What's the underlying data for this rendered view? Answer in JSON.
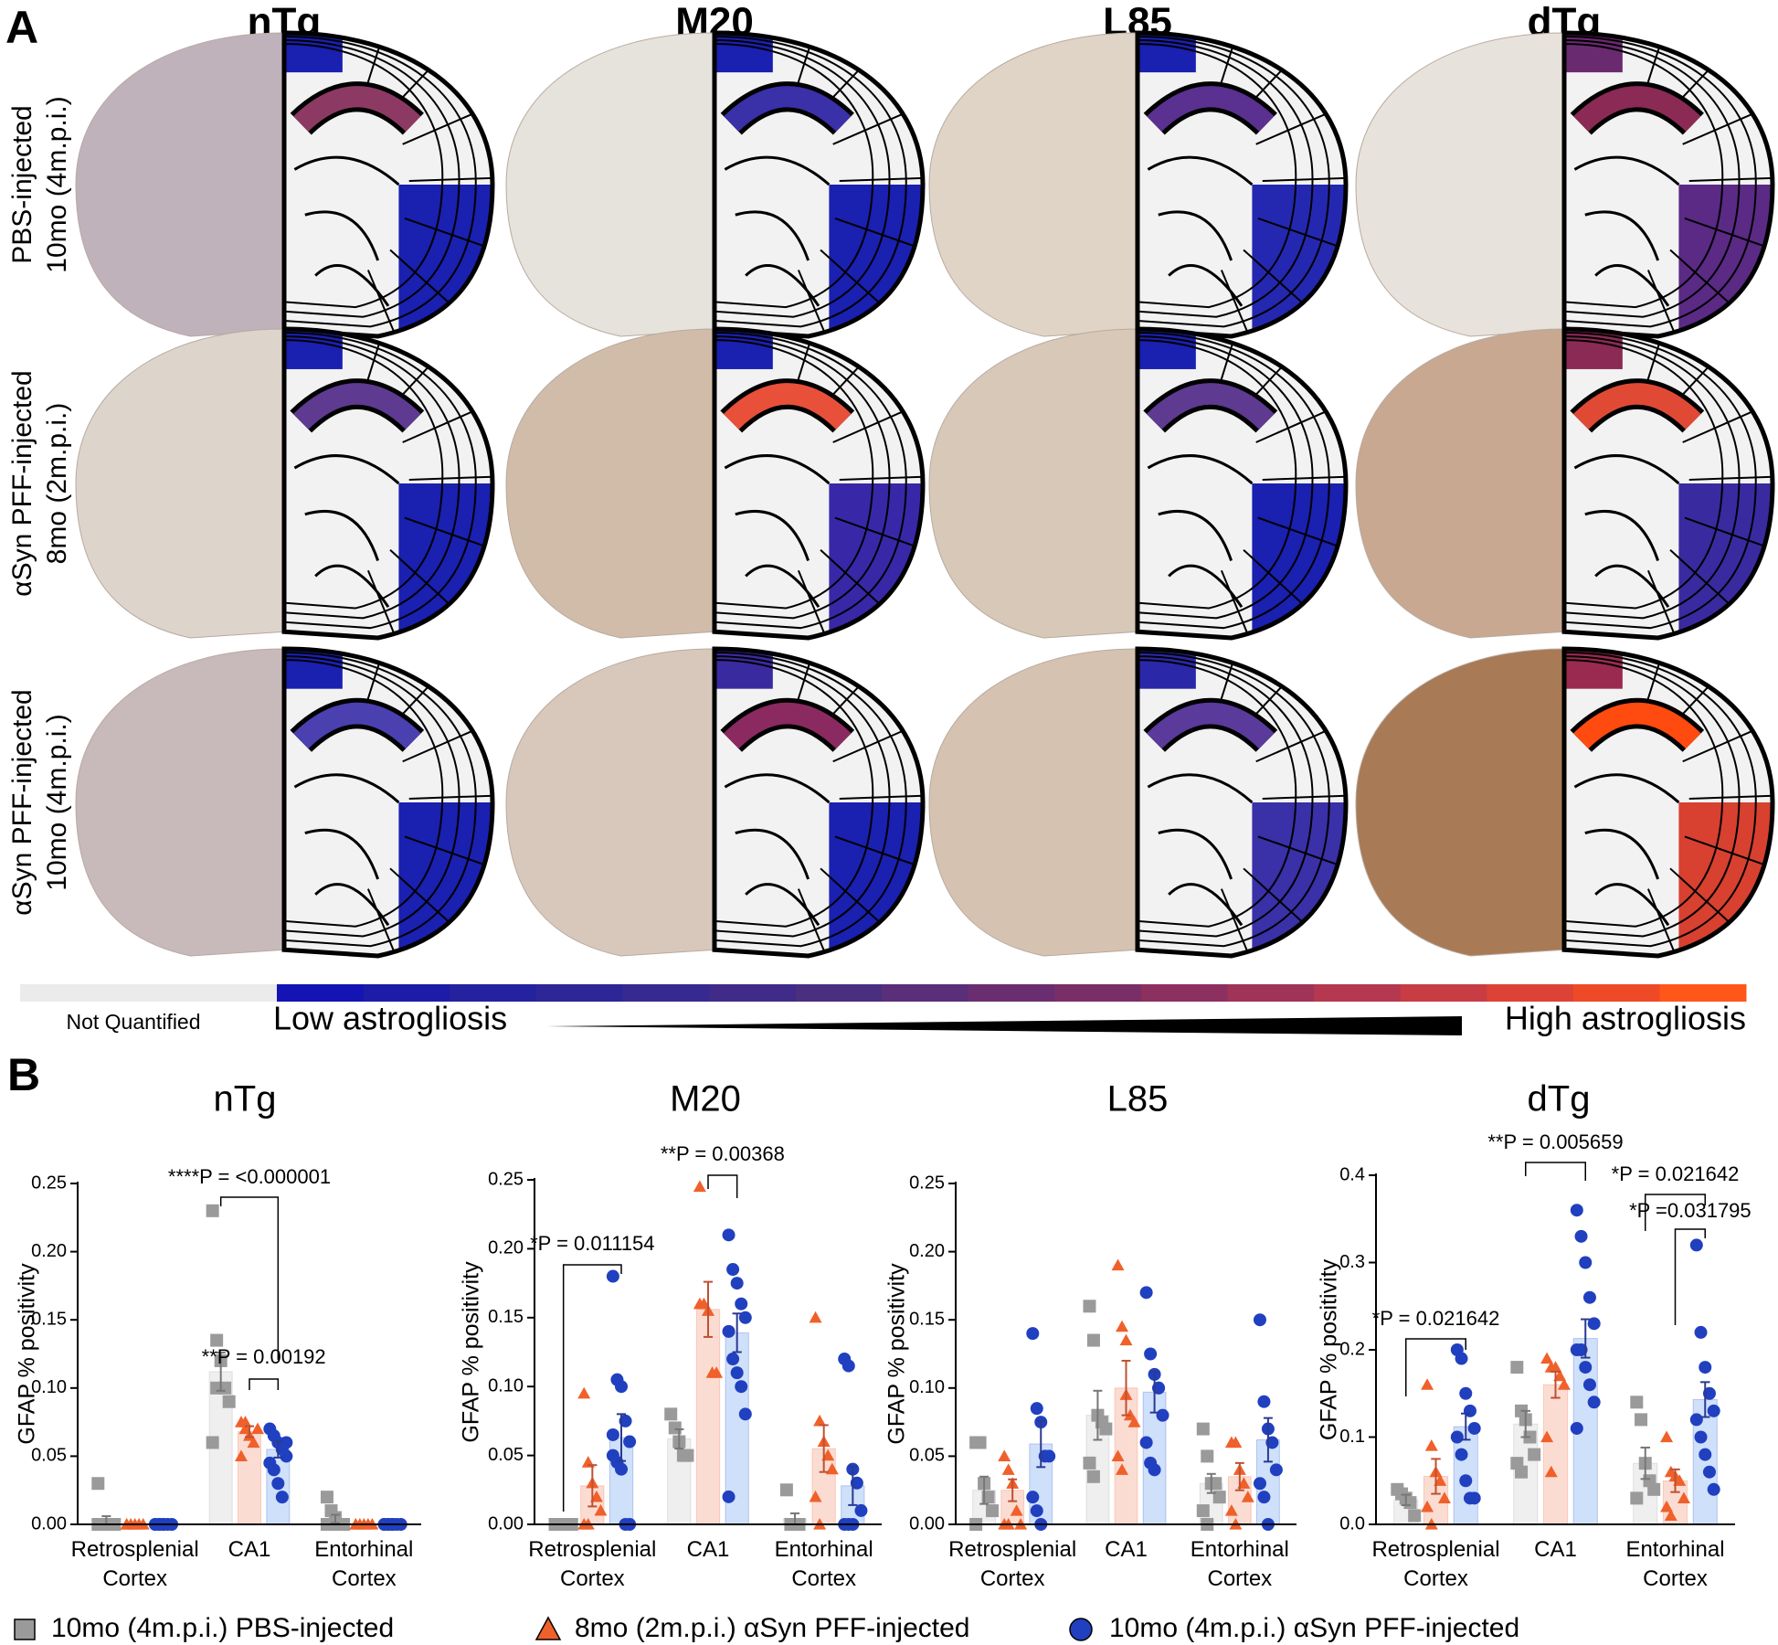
{
  "panel_a": {
    "label": "A",
    "columns": [
      "nTg",
      "M20",
      "L85",
      "dTg"
    ],
    "rows": [
      [
        "PBS-injected",
        "10mo (4m.p.i.)"
      ],
      [
        "αSyn PFF-injected",
        "8mo (2m.p.i.)"
      ],
      [
        "αSyn PFF-injected",
        "10mo (4m.p.i.)"
      ]
    ],
    "cells": [
      [
        {
          "tissue": "#bfb2bb",
          "hc": "#8c3a64",
          "rsc": "#1a20b0",
          "ec": "#1a20b0"
        },
        {
          "tissue": "#e6e2dc",
          "hc": "#3a30a8",
          "rsc": "#1a20b0",
          "ec": "#1a20b0"
        },
        {
          "tissue": "#e0d4c6",
          "hc": "#5a3090",
          "rsc": "#1a20b0",
          "ec": "#2428b0"
        },
        {
          "tissue": "#e8e2dc",
          "hc": "#8a2a55",
          "rsc": "#6a2a70",
          "ec": "#5a2a85"
        }
      ],
      [
        {
          "tissue": "#ddd4cc",
          "hc": "#5e3a90",
          "rsc": "#1a20b0",
          "ec": "#1a20b0"
        },
        {
          "tissue": "#d0bca8",
          "hc": "#e8503a",
          "rsc": "#1a20b0",
          "ec": "#3828a8"
        },
        {
          "tissue": "#d8c8b8",
          "hc": "#5e3a90",
          "rsc": "#1a20b0",
          "ec": "#1a20b0"
        },
        {
          "tissue": "#c8a890",
          "hc": "#e04a35",
          "rsc": "#8a2a55",
          "ec": "#3a2aa0"
        }
      ],
      [
        {
          "tissue": "#c8b9bb",
          "hc": "#4a40b0",
          "rsc": "#1a20b0",
          "ec": "#1a20b0"
        },
        {
          "tissue": "#d8c8bb",
          "hc": "#8a2a60",
          "rsc": "#3a2aa0",
          "ec": "#1a20b0"
        },
        {
          "tissue": "#d5c2b0",
          "hc": "#5a3a9a",
          "rsc": "#2a28a8",
          "ec": "#3a30a8"
        },
        {
          "tissue": "#a87a55",
          "hc": "#ff4a10",
          "rsc": "#9a2a50",
          "ec": "#d84030"
        }
      ]
    ]
  },
  "colorbar": {
    "not_quantified": "Not Quantified",
    "low": "Low astrogliosis",
    "high": "High astrogliosis",
    "gray": "#ebebeb",
    "colors": [
      "#1414b4",
      "#1c1ca8",
      "#24229e",
      "#2c2696",
      "#362a90",
      "#402c88",
      "#4a2e80",
      "#5a2e78",
      "#6a2e70",
      "#7a2e68",
      "#8c3060",
      "#a03458",
      "#b43850",
      "#c83c44",
      "#dc4236",
      "#ee4a28",
      "#ff561a"
    ]
  },
  "panel_b_label": "B",
  "groups": [
    {
      "name": "10mo (4m.p.i.) PBS-injected",
      "marker": "square",
      "bar_color": "#efefef",
      "point_color": "#9a9a9a",
      "error_color": "#777777"
    },
    {
      "name": "8mo (2m.p.i.) αSyn PFF-injected",
      "marker": "triangle",
      "bar_color": "#fbdcd2",
      "point_color": "#f0602a",
      "error_color": "#c05030"
    },
    {
      "name": "10mo (4m.p.i.) αSyn PFF-injected",
      "marker": "circle",
      "bar_color": "#cfe0fb",
      "point_color": "#2040c0",
      "error_color": "#2a3a90"
    }
  ],
  "chart_data": [
    {
      "type": "bar",
      "title": "nTg",
      "y_label": "GFAP % positivity",
      "categories": [
        "Retrosplenial Cortex",
        "CA1",
        "Entorhinal Cortex"
      ],
      "ylim": [
        0,
        0.25
      ],
      "yticks": [
        {
          "value": 0,
          "label": "0.00"
        },
        0.05,
        {
          "value": 0.1,
          "label": "0.10"
        },
        0.15,
        {
          "value": 0.2,
          "label": "0.20"
        },
        0.25
      ],
      "series": [
        {
          "values": [
            0.003,
            0.112,
            0.004
          ],
          "errors": [
            0.003,
            0.014,
            0.003
          ],
          "points": [
            [
              0.03,
              0,
              0,
              0,
              0,
              0
            ],
            [
              0.23,
              0.135,
              0.12,
              0.1,
              0.09,
              0.06,
              0.1
            ],
            [
              0.02,
              0.01,
              0.005,
              0,
              0,
              0
            ]
          ]
        },
        {
          "values": [
            0,
            0.068,
            0
          ],
          "errors": [
            0,
            0.004,
            0
          ],
          "points": [
            [
              0,
              0,
              0,
              0,
              0,
              0
            ],
            [
              0.075,
              0.07,
              0.065,
              0.06,
              0.07,
              0.05,
              0.075
            ],
            [
              0,
              0,
              0,
              0,
              0,
              0
            ]
          ]
        },
        {
          "values": [
            0,
            0.055,
            0
          ],
          "errors": [
            0,
            0.006,
            0
          ],
          "points": [
            [
              0,
              0,
              0,
              0,
              0,
              0,
              0,
              0
            ],
            [
              0.07,
              0.065,
              0.06,
              0.055,
              0.05,
              0.045,
              0.04,
              0.03,
              0.02,
              0.06
            ],
            [
              0,
              0,
              0,
              0,
              0,
              0,
              0,
              0
            ]
          ]
        }
      ],
      "annotations": [
        "****P = <0.000001",
        "**P = 0.00192"
      ]
    },
    {
      "type": "bar",
      "title": "M20",
      "y_label": "GFAP % positivity",
      "categories": [
        "Retrosplenial Cortex",
        "CA1",
        "Entorhinal Cortex"
      ],
      "ylim": [
        0,
        0.25
      ],
      "yticks": [
        {
          "value": 0,
          "label": "0.00"
        },
        0.05,
        {
          "value": 0.1,
          "label": "0.10"
        },
        0.15,
        {
          "value": 0.2,
          "label": "0.20"
        },
        0.25
      ],
      "series": [
        {
          "values": [
            0,
            0.062,
            0.004
          ],
          "errors": [
            0,
            0.007,
            0.004
          ],
          "points": [
            [
              0,
              0,
              0,
              0,
              0
            ],
            [
              0.08,
              0.07,
              0.06,
              0.05,
              0.05
            ],
            [
              0.025,
              0,
              0,
              0
            ]
          ]
        },
        {
          "values": [
            0.028,
            0.156,
            0.055
          ],
          "errors": [
            0.015,
            0.02,
            0.017
          ],
          "points": [
            [
              0.095,
              0.045,
              0.03,
              0.02,
              0.01,
              0,
              0
            ],
            [
              0.245,
              0.16,
              0.155,
              0.11,
              0.11,
              0.16
            ],
            [
              0.15,
              0.075,
              0.06,
              0.05,
              0.04,
              0.02,
              0
            ]
          ]
        },
        {
          "values": [
            0.063,
            0.139,
            0.028
          ],
          "errors": [
            0.017,
            0.014,
            0.014
          ],
          "points": [
            [
              0.18,
              0.105,
              0.1,
              0.075,
              0.06,
              0.05,
              0.045,
              0.04,
              0,
              0,
              0.065
            ],
            [
              0.21,
              0.185,
              0.175,
              0.16,
              0.15,
              0.14,
              0.12,
              0.11,
              0.1,
              0.08,
              0.02
            ],
            [
              0.12,
              0.115,
              0.04,
              0.03,
              0.01,
              0,
              0,
              0
            ]
          ]
        }
      ],
      "annotations": [
        "*P = 0.011154",
        "**P = 0.00368"
      ]
    },
    {
      "type": "bar",
      "title": "L85",
      "y_label": "GFAP % positivity",
      "categories": [
        "Retrosplenial Cortex",
        "CA1",
        "Entorhinal Cortex"
      ],
      "ylim": [
        0,
        0.25
      ],
      "yticks": [
        {
          "value": 0,
          "label": "0.00"
        },
        0.05,
        {
          "value": 0.1,
          "label": "0.10"
        },
        0.15,
        {
          "value": 0.2,
          "label": "0.20"
        },
        0.25
      ],
      "series": [
        {
          "values": [
            0.025,
            0.08,
            0.03
          ],
          "errors": [
            0.01,
            0.018,
            0.007
          ],
          "points": [
            [
              0.06,
              0.06,
              0.03,
              0.02,
              0.01,
              0
            ],
            [
              0.16,
              0.135,
              0.08,
              0.075,
              0.07,
              0.045,
              0.035
            ],
            [
              0.07,
              0.05,
              0.03,
              0.03,
              0.02,
              0.01,
              0
            ]
          ]
        },
        {
          "values": [
            0.025,
            0.1,
            0.035
          ],
          "errors": [
            0.008,
            0.02,
            0.01
          ],
          "points": [
            [
              0.05,
              0.04,
              0.03,
              0.01,
              0,
              0,
              0
            ],
            [
              0.19,
              0.145,
              0.135,
              0.08,
              0.075,
              0.05,
              0.04,
              0.095
            ],
            [
              0.06,
              0.06,
              0.04,
              0.03,
              0.02,
              0.01,
              0
            ]
          ]
        },
        {
          "values": [
            0.059,
            0.097,
            0.062
          ],
          "errors": [
            0.017,
            0.015,
            0.016
          ],
          "points": [
            [
              0.14,
              0.085,
              0.075,
              0.05,
              0.05,
              0.02,
              0.01,
              0
            ],
            [
              0.17,
              0.125,
              0.11,
              0.1,
              0.08,
              0.06,
              0.045,
              0.04,
              0.1
            ],
            [
              0.15,
              0.09,
              0.07,
              0.06,
              0.04,
              0.03,
              0.02,
              0
            ]
          ]
        }
      ],
      "annotations": []
    },
    {
      "type": "bar",
      "title": "dTg",
      "y_label": "GFAP % positivity",
      "categories": [
        "Retrosplenial Cortex",
        "CA1",
        "Entorhinal Cortex"
      ],
      "ylim": [
        0,
        0.4
      ],
      "yticks": [
        {
          "value": 0,
          "label": "0.0"
        },
        0.1,
        0.2,
        0.3,
        0.4
      ],
      "series": [
        {
          "values": [
            0.028,
            0.115,
            0.07
          ],
          "errors": [
            0.006,
            0.015,
            0.018
          ],
          "points": [
            [
              0.04,
              0.035,
              0.03,
              0.025,
              0.01
            ],
            [
              0.18,
              0.13,
              0.12,
              0.1,
              0.08,
              0.07,
              0.06
            ],
            [
              0.14,
              0.12,
              0.07,
              0.05,
              0.04,
              0.03
            ]
          ]
        },
        {
          "values": [
            0.055,
            0.16,
            0.05
          ],
          "errors": [
            0.02,
            0.015,
            0.013
          ],
          "points": [
            [
              0.16,
              0.09,
              0.06,
              0.05,
              0.03,
              0.02,
              0
            ],
            [
              0.19,
              0.18,
              0.18,
              0.17,
              0.16,
              0.1,
              0.06
            ],
            [
              0.1,
              0.06,
              0.055,
              0.05,
              0.03,
              0.02,
              0.01
            ]
          ]
        },
        {
          "values": [
            0.112,
            0.213,
            0.143
          ],
          "errors": [
            0.015,
            0.022,
            0.02
          ],
          "points": [
            [
              0.2,
              0.19,
              0.15,
              0.13,
              0.11,
              0.1,
              0.08,
              0.05,
              0.03,
              0.03
            ],
            [
              0.36,
              0.33,
              0.3,
              0.26,
              0.23,
              0.2,
              0.2,
              0.18,
              0.16,
              0.14,
              0.11
            ],
            [
              0.32,
              0.22,
              0.18,
              0.15,
              0.13,
              0.12,
              0.1,
              0.08,
              0.06,
              0.04
            ]
          ]
        }
      ],
      "annotations": [
        "*P = 0.021642",
        "**P = 0.005659",
        "*P = 0.021642",
        "*P =0.031795"
      ]
    }
  ]
}
